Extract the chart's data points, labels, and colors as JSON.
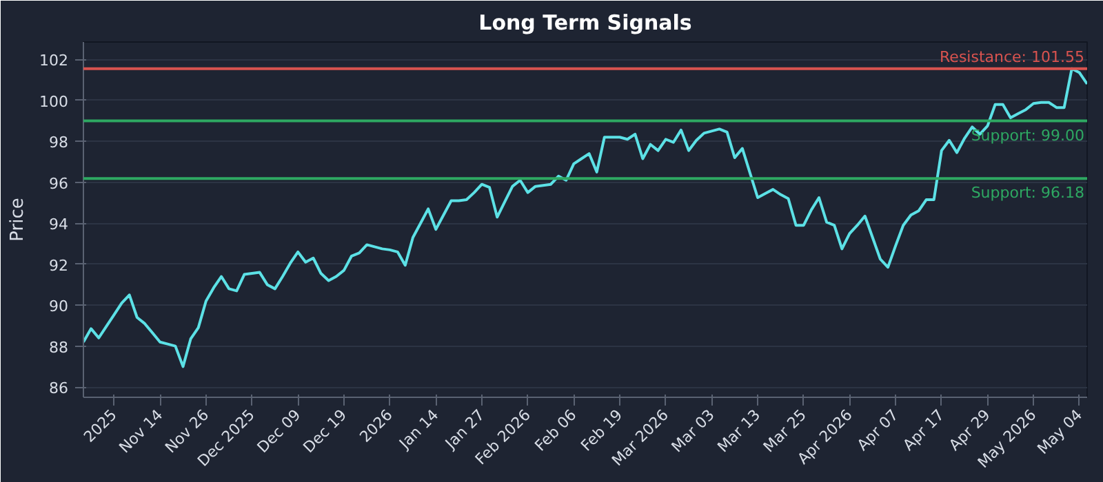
{
  "chart_data": {
    "type": "line",
    "title": "Long Term Signals",
    "ylabel": "Price",
    "categories": [
      null,
      null,
      null,
      null,
      "2025",
      null,
      null,
      null,
      null,
      null,
      "Nov 14",
      null,
      null,
      null,
      null,
      null,
      "Nov 26",
      null,
      null,
      null,
      null,
      null,
      "Dec 2025",
      null,
      null,
      null,
      null,
      null,
      "Dec 09",
      null,
      null,
      null,
      null,
      null,
      "Dec 19",
      null,
      null,
      null,
      null,
      null,
      "2026",
      null,
      null,
      null,
      null,
      null,
      "Jan 14",
      null,
      null,
      null,
      null,
      null,
      "Jan 27",
      null,
      null,
      null,
      null,
      null,
      "Feb 2026",
      null,
      null,
      null,
      null,
      null,
      "Feb 06",
      null,
      null,
      null,
      null,
      null,
      "Feb 19",
      null,
      null,
      null,
      null,
      null,
      "Mar 2026",
      null,
      null,
      null,
      null,
      null,
      "Mar 03",
      null,
      null,
      null,
      null,
      null,
      "Mar 13",
      null,
      null,
      null,
      null,
      null,
      "Mar 25",
      null,
      null,
      null,
      null,
      null,
      "Apr 2026",
      null,
      null,
      null,
      null,
      null,
      "Apr 07",
      null,
      null,
      null,
      null,
      null,
      "Apr 17",
      null,
      null,
      null,
      null,
      null,
      "Apr 29",
      null,
      null,
      null,
      null,
      null,
      "May 2026",
      null,
      null,
      null,
      null,
      null,
      "May 04",
      null
    ],
    "series": [
      {
        "color": "#5ce1e6",
        "values": [
          88.2,
          88.85,
          88.4,
          88.97,
          89.53,
          90.1,
          90.5,
          89.4,
          89.1,
          88.65,
          88.2,
          88.1,
          88.0,
          87.0,
          88.35,
          88.9,
          90.2,
          90.85,
          91.4,
          90.8,
          90.7,
          91.5,
          91.55,
          91.6,
          91.0,
          90.8,
          91.4,
          92.05,
          92.6,
          92.1,
          92.3,
          91.55,
          91.2,
          91.4,
          91.7,
          92.4,
          92.55,
          92.95,
          92.85,
          92.75,
          92.7,
          92.6,
          91.95,
          93.3,
          94.0,
          94.7,
          93.7,
          94.4,
          95.1,
          95.1,
          95.15,
          95.5,
          95.9,
          95.75,
          94.3,
          95.05,
          95.8,
          96.1,
          95.5,
          95.8,
          95.85,
          95.9,
          96.3,
          96.1,
          96.9,
          97.15,
          97.4,
          96.5,
          98.2,
          98.2,
          98.2,
          98.1,
          98.35,
          97.15,
          97.85,
          97.55,
          98.1,
          97.95,
          98.55,
          97.55,
          98.05,
          98.4,
          98.5,
          98.6,
          98.45,
          97.2,
          97.65,
          96.45,
          95.25,
          95.45,
          95.65,
          95.4,
          95.2,
          93.9,
          93.9,
          94.65,
          95.25,
          94.05,
          93.9,
          92.75,
          93.5,
          93.9,
          94.35,
          93.3,
          92.25,
          91.85,
          92.9,
          93.9,
          94.4,
          94.6,
          95.15,
          95.15,
          97.55,
          98.05,
          97.45,
          98.15,
          98.7,
          98.35,
          98.75,
          99.8,
          99.8,
          99.15,
          99.35,
          99.55,
          99.85,
          99.9,
          99.9,
          99.65,
          99.65,
          101.55,
          101.35,
          100.8
        ]
      }
    ],
    "ylim": [
      85.5,
      102.85
    ],
    "yticks": [
      86,
      88,
      90,
      92,
      94,
      96,
      98,
      100,
      102
    ],
    "ref_lines": [
      {
        "axis": "y",
        "value": 101.55,
        "label": "Resistance: 101.55",
        "color": "#d9534f"
      },
      {
        "axis": "y",
        "value": 99.0,
        "label": "Support: 99.00",
        "color": "#2ea862"
      },
      {
        "axis": "y",
        "value": 96.18,
        "label": "Support: 96.18",
        "color": "#2ea862"
      }
    ],
    "grid": "y",
    "marker": "none",
    "line_style": "solid"
  }
}
